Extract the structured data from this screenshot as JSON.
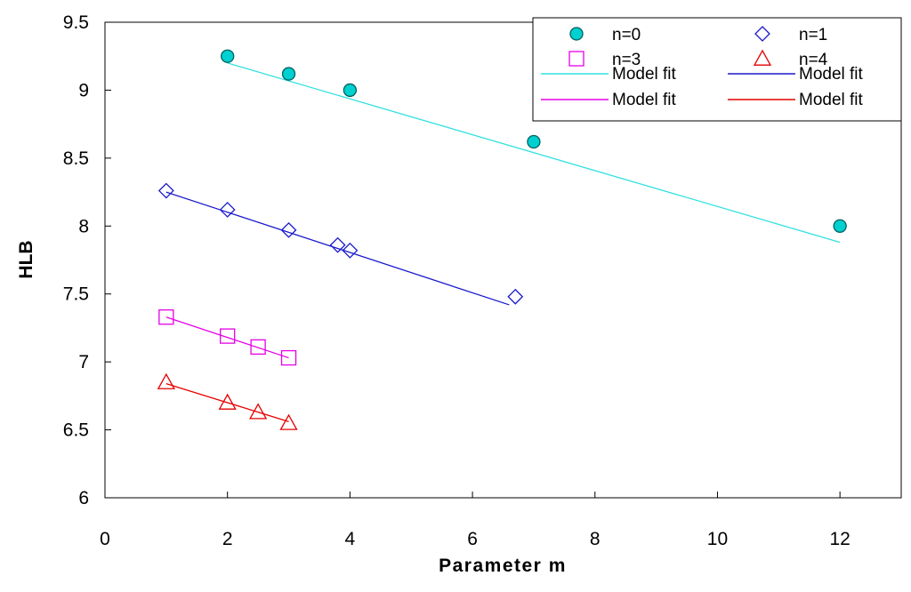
{
  "chart_data": {
    "type": "scatter",
    "title": "",
    "xlabel": "Parameter m",
    "ylabel": "HLB",
    "xlim": [
      0,
      13
    ],
    "ylim": [
      6,
      9.5
    ],
    "xticks": [
      0,
      2,
      4,
      6,
      8,
      10,
      12
    ],
    "yticks": [
      6,
      6.5,
      7,
      7.5,
      8,
      8.5,
      9,
      9.5
    ],
    "xtick_labels": [
      "0",
      "2",
      "4",
      "6",
      "8",
      "10",
      "12"
    ],
    "ytick_labels": [
      "6",
      "6.5",
      "7",
      "7.5",
      "8",
      "8.5",
      "9",
      "9.5"
    ],
    "grid": false,
    "legend_position": "top-right",
    "series": [
      {
        "name": "n=0",
        "marker": "circle",
        "color": "#00c8c8",
        "fill": "#00d0d0",
        "x": [
          2,
          3,
          4,
          7,
          12
        ],
        "y": [
          9.25,
          9.12,
          9.0,
          8.62,
          8.0
        ],
        "fit_name": "Model fit",
        "fit_color": "#33e0e0",
        "fit_x": [
          2,
          12
        ],
        "fit_y": [
          9.2,
          7.88
        ]
      },
      {
        "name": "n=1",
        "marker": "diamond",
        "color": "#1a1acc",
        "fill": "none",
        "x": [
          1,
          2,
          3,
          3.8,
          4,
          6.7
        ],
        "y": [
          8.26,
          8.12,
          7.97,
          7.86,
          7.82,
          7.48
        ],
        "fit_name": "Model fit",
        "fit_color": "#1a1acc",
        "fit_x": [
          1,
          6.6
        ],
        "fit_y": [
          8.25,
          7.42
        ]
      },
      {
        "name": "n=3",
        "marker": "square",
        "color": "#e600e6",
        "fill": "none",
        "x": [
          1,
          2,
          2.5,
          3
        ],
        "y": [
          7.33,
          7.19,
          7.11,
          7.03
        ],
        "fit_name": "Model fit",
        "fit_color": "#e600e6",
        "fit_x": [
          1,
          3
        ],
        "fit_y": [
          7.33,
          7.03
        ]
      },
      {
        "name": "n=4",
        "marker": "triangle",
        "color": "#e60000",
        "fill": "none",
        "x": [
          1,
          2,
          2.5,
          3
        ],
        "y": [
          6.85,
          6.7,
          6.63,
          6.55
        ],
        "fit_name": "Model fit",
        "fit_color": "#e60000",
        "fit_x": [
          1,
          3
        ],
        "fit_y": [
          6.84,
          6.56
        ]
      }
    ]
  }
}
